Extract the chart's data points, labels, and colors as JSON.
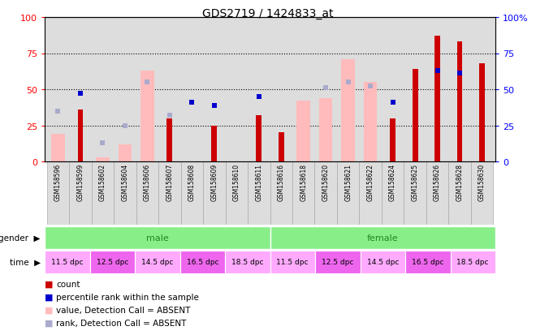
{
  "title": "GDS2719 / 1424833_at",
  "samples": [
    "GSM158596",
    "GSM158599",
    "GSM158602",
    "GSM158604",
    "GSM158606",
    "GSM158607",
    "GSM158608",
    "GSM158609",
    "GSM158610",
    "GSM158611",
    "GSM158616",
    "GSM158618",
    "GSM158620",
    "GSM158621",
    "GSM158622",
    "GSM158624",
    "GSM158625",
    "GSM158626",
    "GSM158628",
    "GSM158630"
  ],
  "red_bars": [
    0,
    36,
    0,
    0,
    0,
    30,
    0,
    25,
    0,
    32,
    20,
    0,
    0,
    0,
    0,
    30,
    64,
    87,
    83,
    68
  ],
  "pink_bars": [
    19,
    0,
    3,
    12,
    63,
    0,
    0,
    0,
    0,
    0,
    0,
    42,
    44,
    71,
    55,
    0,
    0,
    0,
    0,
    0
  ],
  "blue_squares": [
    null,
    47,
    null,
    null,
    null,
    null,
    41,
    39,
    null,
    45,
    null,
    null,
    null,
    null,
    null,
    41,
    null,
    63,
    61,
    null
  ],
  "light_blue_squares": [
    35,
    null,
    13,
    25,
    55,
    32,
    null,
    null,
    null,
    null,
    null,
    null,
    51,
    55,
    52,
    null,
    null,
    null,
    null,
    null
  ],
  "ylim": [
    0,
    100
  ],
  "yticks": [
    0,
    25,
    50,
    75,
    100
  ],
  "bg_color": "#ffffff",
  "plot_bg": "#dddddd",
  "gender_bar_color": "#88ee88",
  "time_bar_color_light": "#ffaaff",
  "time_bar_color_dark": "#ee66ee",
  "red_color": "#cc0000",
  "pink_color": "#ffbbbb",
  "blue_color": "#0000cc",
  "light_blue_color": "#aaaacc",
  "time_labels": [
    "11.5 dpc",
    "12.5 dpc",
    "14.5 dpc",
    "16.5 dpc",
    "18.5 dpc"
  ],
  "legend_labels": [
    "count",
    "percentile rank within the sample",
    "value, Detection Call = ABSENT",
    "rank, Detection Call = ABSENT"
  ]
}
